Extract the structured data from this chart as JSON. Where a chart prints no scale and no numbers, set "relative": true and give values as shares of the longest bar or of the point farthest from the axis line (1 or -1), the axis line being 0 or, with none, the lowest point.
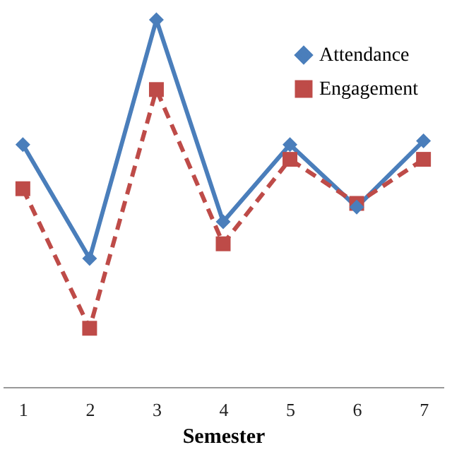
{
  "chart_data": {
    "type": "line",
    "relative": true,
    "xlabel": "Semester",
    "categories": [
      "1",
      "2",
      "3",
      "4",
      "5",
      "6",
      "7"
    ],
    "series": [
      {
        "name": "Attendance",
        "color": "#4a7ebb",
        "marker": "diamond",
        "line_style": "solid",
        "values": [
          0.66,
          0.35,
          1.0,
          0.45,
          0.66,
          0.49,
          0.67
        ]
      },
      {
        "name": "Engagement",
        "color": "#be4b48",
        "marker": "square",
        "line_style": "dashed",
        "values": [
          0.54,
          0.16,
          0.81,
          0.39,
          0.62,
          0.5,
          0.62
        ]
      }
    ],
    "legend": "top right",
    "grid": false
  }
}
